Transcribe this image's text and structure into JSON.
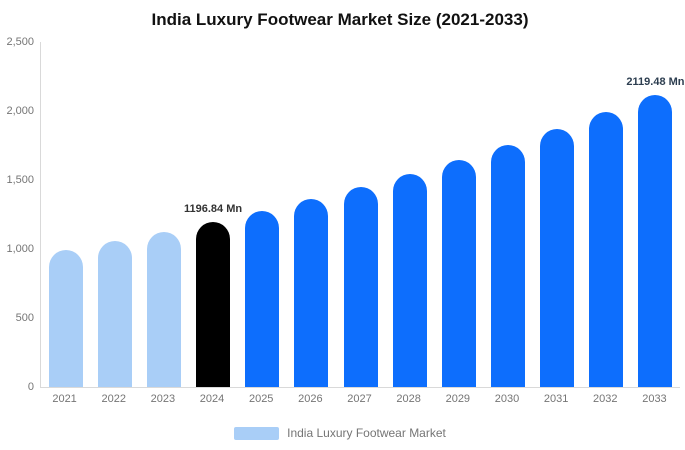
{
  "chart_data": {
    "type": "bar",
    "title": "India Luxury Footwear Market Size (2021-2033)",
    "xlabel": "",
    "ylabel": "",
    "categories": [
      "2021",
      "2022",
      "2023",
      "2024",
      "2025",
      "2026",
      "2027",
      "2028",
      "2029",
      "2030",
      "2031",
      "2032",
      "2033"
    ],
    "values": [
      990,
      1055,
      1124,
      1196.84,
      1275,
      1359,
      1448,
      1543,
      1644,
      1752,
      1867,
      1990,
      2119.48
    ],
    "unit": "Mn",
    "ylim": [
      0,
      2500
    ],
    "yticks": [
      0,
      500,
      1000,
      1500,
      2000,
      2500
    ],
    "ytick_labels": [
      "0",
      "500",
      "1,000",
      "1,500",
      "2,000",
      "2,500"
    ],
    "grid": false,
    "legend_position": "bottom",
    "legend_label": "India Luxury Footwear Market",
    "bar_color_keys": [
      "historical",
      "historical",
      "historical",
      "base",
      "forecast",
      "forecast",
      "forecast",
      "forecast",
      "forecast",
      "forecast",
      "forecast",
      "forecast",
      "forecast"
    ],
    "colors": {
      "historical": "#a9cef7",
      "base": "#000000",
      "forecast": "#0d6efd",
      "axis": "#d9d9d9",
      "tick_text": "#757575"
    },
    "annotations": [
      {
        "index": 3,
        "category": "2024",
        "label": "1196.84 Mn",
        "color": "#333333"
      },
      {
        "index": 12,
        "category": "2033",
        "label": "2119.48 Mn",
        "color": "#2d3e50"
      }
    ]
  }
}
